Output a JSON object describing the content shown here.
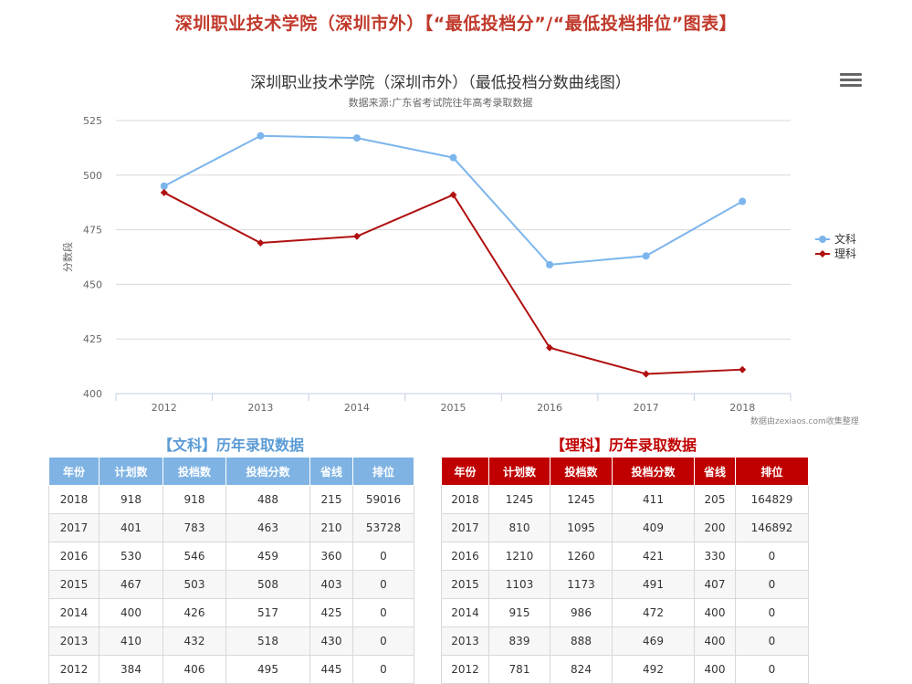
{
  "page_title": "深圳职业技术学院（深圳市外）【“最低投档分”/“最低投档排位”图表】",
  "menu_icon": "hamburger-menu-icon",
  "chart_data": {
    "type": "line",
    "title": "深圳职业技术学院（深圳市外）（最低投档分数曲线图）",
    "subtitle": "数据来源:广东省考试院往年高考录取数据",
    "xlabel": "",
    "ylabel": "分数段",
    "categories": [
      "2012",
      "2013",
      "2014",
      "2015",
      "2016",
      "2017",
      "2018"
    ],
    "ylim": [
      400,
      525
    ],
    "yticks": [
      "400",
      "425",
      "450",
      "475",
      "500",
      "525"
    ],
    "grid": true,
    "legend_position": "right",
    "series": [
      {
        "name": "文科",
        "color": "#7cb5ec",
        "marker": "circle",
        "values": [
          495,
          518,
          517,
          508,
          459,
          463,
          488
        ]
      },
      {
        "name": "理科",
        "color": "#b01010",
        "marker": "diamond",
        "values": [
          492,
          469,
          472,
          491,
          421,
          409,
          411
        ]
      }
    ],
    "credit": "数据由zexiaos.com收集整理"
  },
  "tables": {
    "wen": {
      "title": "【文科】历年录取数据",
      "headers": [
        "年份",
        "计划数",
        "投档数",
        "投档分数",
        "省线",
        "排位"
      ],
      "rows": [
        [
          "2018",
          "918",
          "918",
          "488",
          "215",
          "59016"
        ],
        [
          "2017",
          "401",
          "783",
          "463",
          "210",
          "53728"
        ],
        [
          "2016",
          "530",
          "546",
          "459",
          "360",
          "0"
        ],
        [
          "2015",
          "467",
          "503",
          "508",
          "403",
          "0"
        ],
        [
          "2014",
          "400",
          "426",
          "517",
          "425",
          "0"
        ],
        [
          "2013",
          "410",
          "432",
          "518",
          "430",
          "0"
        ],
        [
          "2012",
          "384",
          "406",
          "495",
          "445",
          "0"
        ]
      ]
    },
    "li": {
      "title": "【理科】历年录取数据",
      "headers": [
        "年份",
        "计划数",
        "投档数",
        "投档分数",
        "省线",
        "排位"
      ],
      "rows": [
        [
          "2018",
          "1245",
          "1245",
          "411",
          "205",
          "164829"
        ],
        [
          "2017",
          "810",
          "1095",
          "409",
          "200",
          "146892"
        ],
        [
          "2016",
          "1210",
          "1260",
          "421",
          "330",
          "0"
        ],
        [
          "2015",
          "1103",
          "1173",
          "491",
          "407",
          "0"
        ],
        [
          "2014",
          "915",
          "986",
          "472",
          "400",
          "0"
        ],
        [
          "2013",
          "839",
          "888",
          "469",
          "400",
          "0"
        ],
        [
          "2012",
          "781",
          "824",
          "492",
          "400",
          "0"
        ]
      ]
    }
  }
}
